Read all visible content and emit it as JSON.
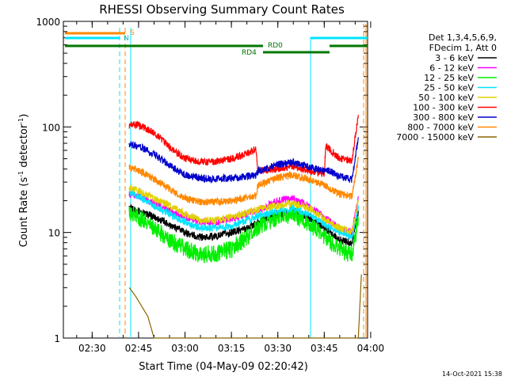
{
  "chart_data": {
    "type": "line",
    "title": "RHESSI Observing Summary Count Rates",
    "xlabel": "Start Time (04-May-09 02:20:42)",
    "ylabel": "Count Rate (s",
    "ylabel_sup": "-1",
    "ylabel_rest": " detector",
    "ylabel_sup2": "-1",
    "ylabel_end": ")",
    "x_unit": "minutes after 02:20:42",
    "x_range": [
      "02:20:42",
      "03:59:00"
    ],
    "y_scale": "log",
    "ylim": [
      1,
      1000
    ],
    "x_ticks": [
      "02:30",
      "02:45",
      "03:00",
      "03:15",
      "03:30",
      "03:45",
      "04:00"
    ],
    "y_ticks": [
      "1",
      "10",
      "100",
      "1000"
    ],
    "legend_header": [
      "Det 1,3,4,5,6,9,",
      "FDecim 1, Att 0"
    ],
    "legend_position": "right",
    "footer": "14-Oct-2021 15:38",
    "series": [
      {
        "name": "3 - 6 keV",
        "color": "#000000",
        "points": [
          [
            "02:42:00",
            17
          ],
          [
            "02:45:00",
            16
          ],
          [
            "02:50:00",
            14
          ],
          [
            "02:55:00",
            12
          ],
          [
            "03:00:00",
            10
          ],
          [
            "03:05:00",
            9
          ],
          [
            "03:10:00",
            9.2
          ],
          [
            "03:15:00",
            10
          ],
          [
            "03:20:00",
            11
          ],
          [
            "03:25:00",
            13
          ],
          [
            "03:30:00",
            15
          ],
          [
            "03:35:00",
            16
          ],
          [
            "03:40:00",
            14
          ],
          [
            "03:45:00",
            11
          ],
          [
            "03:50:00",
            8.5
          ],
          [
            "03:54:00",
            8
          ],
          [
            "03:56:00",
            16
          ]
        ]
      },
      {
        "name": "6 - 12 keV",
        "color": "#ff00ff",
        "points": [
          [
            "02:42:00",
            23
          ],
          [
            "02:45:00",
            22
          ],
          [
            "02:50:00",
            19
          ],
          [
            "02:55:00",
            16
          ],
          [
            "03:00:00",
            14
          ],
          [
            "03:05:00",
            12.5
          ],
          [
            "03:10:00",
            12.5
          ],
          [
            "03:15:00",
            13.5
          ],
          [
            "03:20:00",
            15
          ],
          [
            "03:25:00",
            17
          ],
          [
            "03:30:00",
            20
          ],
          [
            "03:35:00",
            21
          ],
          [
            "03:40:00",
            18
          ],
          [
            "03:45:00",
            14
          ],
          [
            "03:50:00",
            11
          ],
          [
            "03:54:00",
            10
          ],
          [
            "03:56:00",
            22
          ]
        ]
      },
      {
        "name": "12 - 25 keV",
        "color": "#00ee00",
        "points": [
          [
            "02:42:00",
            15
          ],
          [
            "02:45:00",
            14
          ],
          [
            "02:50:00",
            11
          ],
          [
            "02:55:00",
            8.5
          ],
          [
            "03:00:00",
            7
          ],
          [
            "03:05:00",
            6.2
          ],
          [
            "03:10:00",
            6.3
          ],
          [
            "03:15:00",
            7
          ],
          [
            "03:20:00",
            9
          ],
          [
            "03:25:00",
            12
          ],
          [
            "03:30:00",
            14
          ],
          [
            "03:35:00",
            15
          ],
          [
            "03:40:00",
            12
          ],
          [
            "03:45:00",
            9
          ],
          [
            "03:50:00",
            7
          ],
          [
            "03:54:00",
            6
          ],
          [
            "03:56:00",
            14
          ]
        ]
      },
      {
        "name": "25 - 50 keV",
        "color": "#00e5ff",
        "points": [
          [
            "02:42:00",
            24
          ],
          [
            "02:45:00",
            22
          ],
          [
            "02:50:00",
            18
          ],
          [
            "02:55:00",
            15
          ],
          [
            "03:00:00",
            12.5
          ],
          [
            "03:05:00",
            11
          ],
          [
            "03:10:00",
            11
          ],
          [
            "03:15:00",
            11.5
          ],
          [
            "03:20:00",
            13
          ],
          [
            "03:25:00",
            15
          ],
          [
            "03:30:00",
            16
          ],
          [
            "03:35:00",
            17
          ],
          [
            "03:40:00",
            15
          ],
          [
            "03:45:00",
            12
          ],
          [
            "03:50:00",
            10
          ],
          [
            "03:54:00",
            9
          ],
          [
            "03:56:00",
            18
          ]
        ]
      },
      {
        "name": "50 - 100 keV",
        "color": "#e0d000",
        "points": [
          [
            "02:42:00",
            26
          ],
          [
            "02:45:00",
            25
          ],
          [
            "02:50:00",
            21
          ],
          [
            "02:55:00",
            18
          ],
          [
            "03:00:00",
            15
          ],
          [
            "03:05:00",
            13
          ],
          [
            "03:10:00",
            13
          ],
          [
            "03:15:00",
            14
          ],
          [
            "03:20:00",
            15.5
          ],
          [
            "03:25:00",
            17
          ],
          [
            "03:30:00",
            18
          ],
          [
            "03:35:00",
            19
          ],
          [
            "03:40:00",
            17
          ],
          [
            "03:45:00",
            13.5
          ],
          [
            "03:50:00",
            11
          ],
          [
            "03:54:00",
            10
          ],
          [
            "03:56:00",
            20
          ]
        ]
      },
      {
        "name": "100 - 300 keV",
        "color": "#ff0000",
        "points": [
          [
            "02:42:00",
            104
          ],
          [
            "02:45:00",
            104
          ],
          [
            "02:50:00",
            88
          ],
          [
            "02:55:00",
            65
          ],
          [
            "03:00:00",
            50
          ],
          [
            "03:05:00",
            47
          ],
          [
            "03:10:00",
            47
          ],
          [
            "03:15:00",
            50
          ],
          [
            "03:20:00",
            56
          ],
          [
            "03:23:00",
            62
          ],
          [
            "03:23:30",
            38
          ],
          [
            "03:30:00",
            40
          ],
          [
            "03:35:00",
            42
          ],
          [
            "03:40:00",
            39
          ],
          [
            "03:45:00",
            36
          ],
          [
            "03:45:30",
            66
          ],
          [
            "03:50:00",
            50
          ],
          [
            "03:54:00",
            48
          ],
          [
            "03:56:00",
            130
          ]
        ]
      },
      {
        "name": "300 - 800 keV",
        "color": "#0000cc",
        "points": [
          [
            "02:42:00",
            68
          ],
          [
            "02:45:00",
            66
          ],
          [
            "02:50:00",
            55
          ],
          [
            "02:55:00",
            43
          ],
          [
            "03:00:00",
            35
          ],
          [
            "03:05:00",
            33
          ],
          [
            "03:10:00",
            32
          ],
          [
            "03:15:00",
            33
          ],
          [
            "03:20:00",
            34
          ],
          [
            "03:23:00",
            35
          ],
          [
            "03:23:30",
            38
          ],
          [
            "03:30:00",
            44
          ],
          [
            "03:35:00",
            46
          ],
          [
            "03:40:00",
            42
          ],
          [
            "03:45:00",
            38
          ],
          [
            "03:45:30",
            40
          ],
          [
            "03:50:00",
            34
          ],
          [
            "03:54:00",
            32
          ],
          [
            "03:56:00",
            80
          ]
        ]
      },
      {
        "name": "800 - 7000 keV",
        "color": "#ff8800",
        "points": [
          [
            "02:42:00",
            41
          ],
          [
            "02:45:00",
            39
          ],
          [
            "02:50:00",
            32
          ],
          [
            "02:55:00",
            26
          ],
          [
            "03:00:00",
            21
          ],
          [
            "03:05:00",
            19.5
          ],
          [
            "03:10:00",
            19.5
          ],
          [
            "03:15:00",
            20
          ],
          [
            "03:20:00",
            21.5
          ],
          [
            "03:23:00",
            22
          ],
          [
            "03:23:30",
            28
          ],
          [
            "03:30:00",
            33
          ],
          [
            "03:35:00",
            35
          ],
          [
            "03:40:00",
            32
          ],
          [
            "03:45:00",
            28
          ],
          [
            "03:50:00",
            23
          ],
          [
            "03:54:00",
            22
          ],
          [
            "03:56:00",
            50
          ]
        ]
      },
      {
        "name": "7000 - 15000 keV",
        "color": "#886600",
        "points": [
          [
            "02:42:00",
            3
          ],
          [
            "02:44:00",
            2.5
          ],
          [
            "02:46:00",
            2
          ],
          [
            "02:48:00",
            1.6
          ],
          [
            "02:50:00",
            1
          ],
          [
            "03:56:00",
            1
          ],
          [
            "03:57:00",
            4
          ]
        ]
      }
    ],
    "annotations": {
      "saa_label": "S",
      "night_label": "N",
      "rd0_label": "RD0",
      "rd4_label": "RD4"
    }
  }
}
